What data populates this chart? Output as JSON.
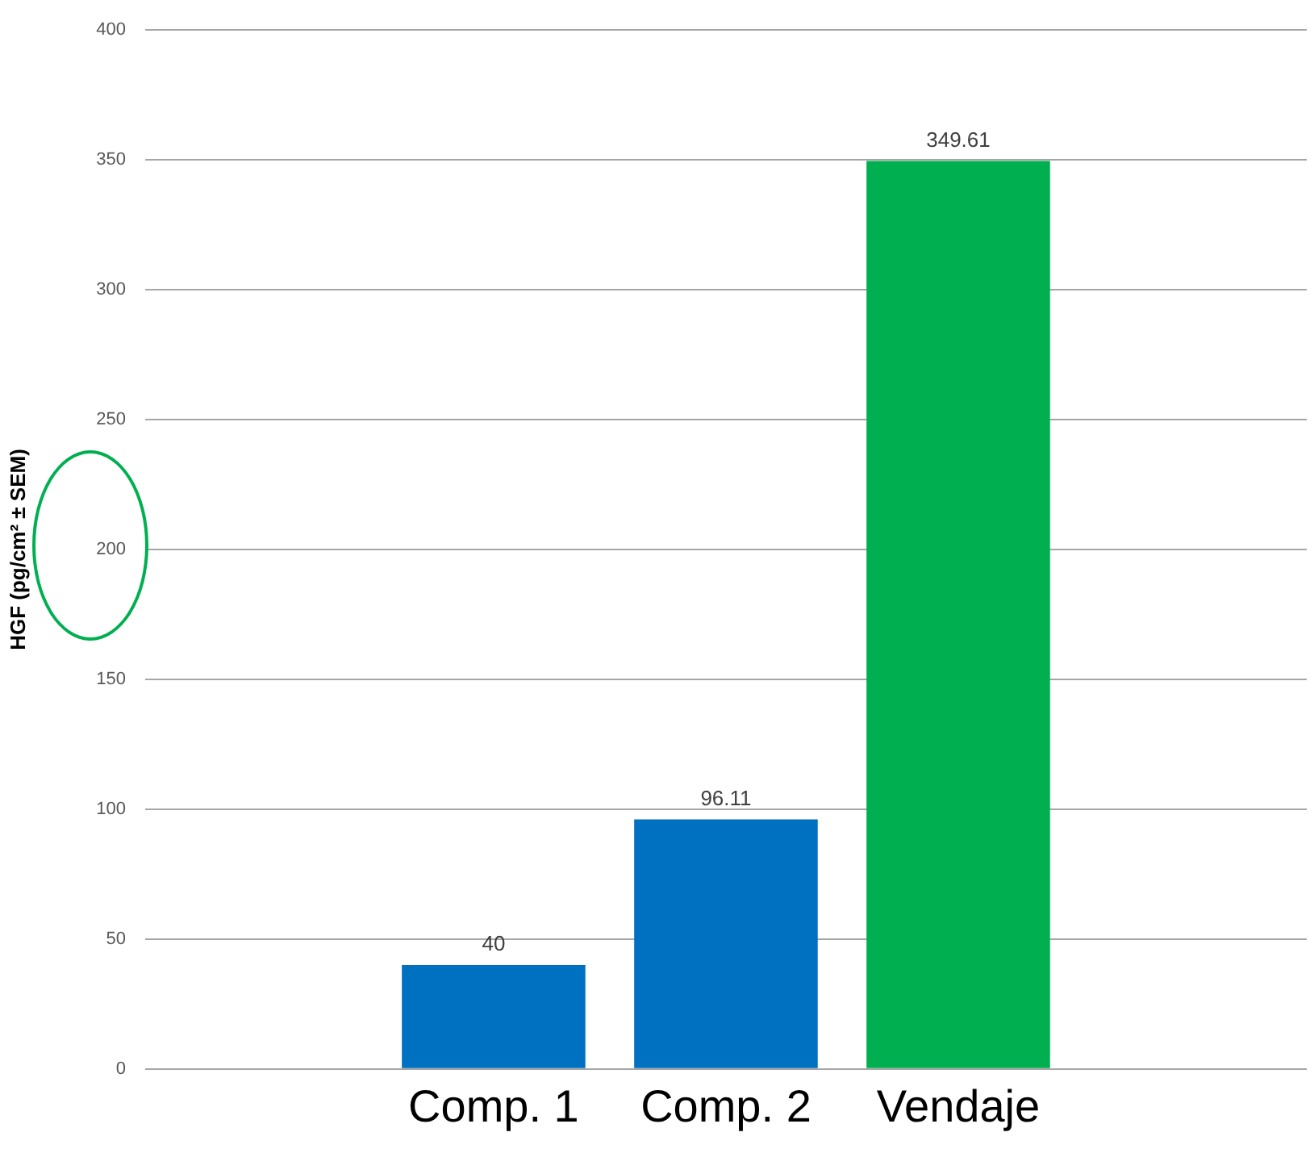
{
  "chart_data": {
    "type": "bar",
    "ylabel": "HGF (pg/cm² ± SEM)",
    "categories": [
      null,
      "Comp. 1",
      "Comp. 2",
      "Vendaje",
      null
    ],
    "values": [
      null,
      40,
      96.11,
      349.61,
      null
    ],
    "colors": [
      null,
      "#0070c0",
      "#0070c0",
      "#00b050",
      null
    ],
    "ylim": [
      0,
      400
    ],
    "yticks": [
      0,
      50,
      100,
      150,
      200,
      250,
      300,
      350,
      400
    ],
    "grid": "y",
    "data_labels": true,
    "legend": false
  }
}
